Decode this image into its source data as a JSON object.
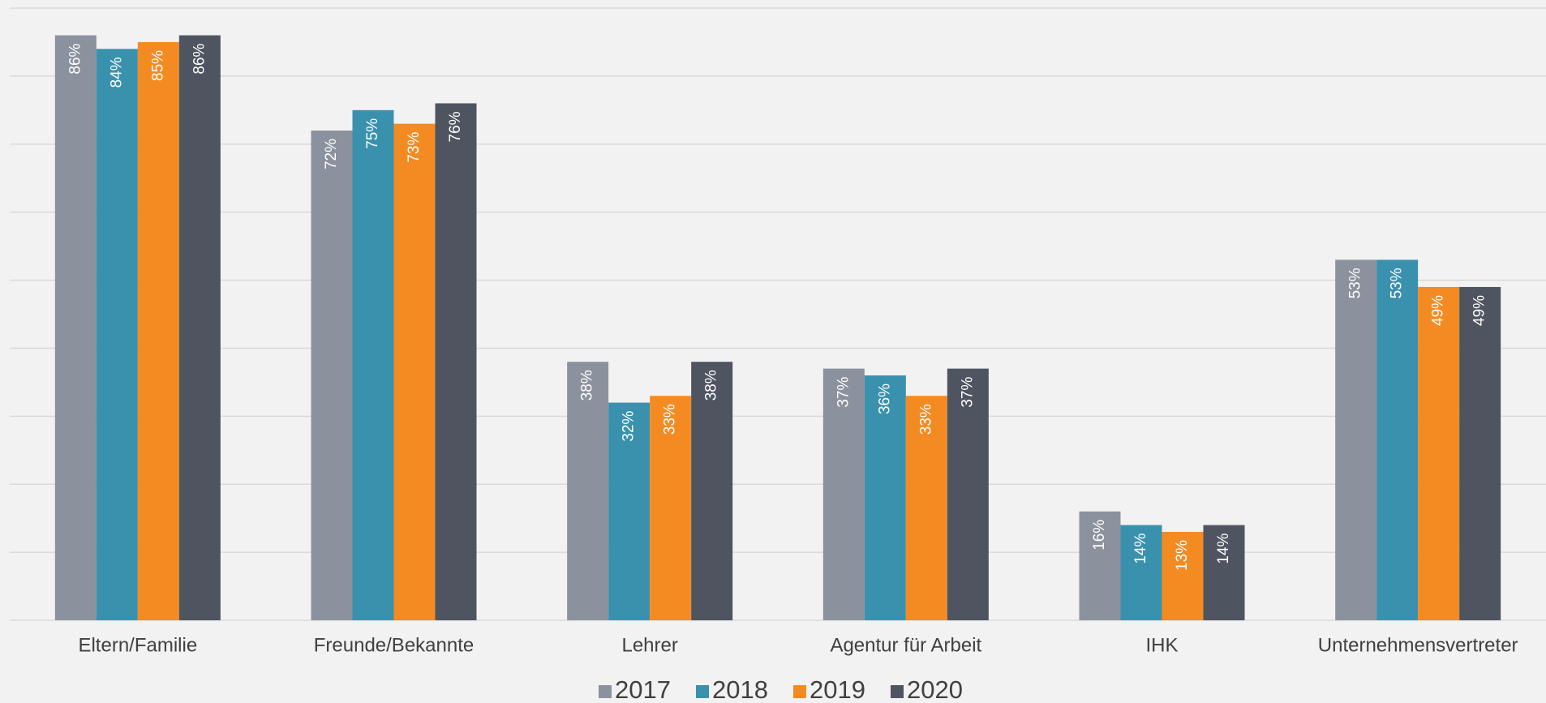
{
  "chart_data": {
    "type": "bar",
    "categories": [
      "Eltern/Familie",
      "Freunde/Bekannte",
      "Lehrer",
      "Agentur für Arbeit",
      "IHK",
      "Unternehmensvertreter"
    ],
    "series": [
      {
        "name": "2017",
        "color": "#8c919e",
        "values": [
          86,
          72,
          38,
          37,
          16,
          53
        ],
        "value_labels": [
          "86%",
          "72%",
          "38%",
          "37%",
          "16%",
          "53%"
        ]
      },
      {
        "name": "2018",
        "color": "#3a91ad",
        "values": [
          84,
          75,
          32,
          36,
          14,
          53
        ],
        "value_labels": [
          "84%",
          "75%",
          "32%",
          "36%",
          "14%",
          "53%"
        ]
      },
      {
        "name": "2019",
        "color": "#f48b22",
        "values": [
          85,
          73,
          33,
          33,
          13,
          49
        ],
        "value_labels": [
          "85%",
          "73%",
          "33%",
          "33%",
          "13%",
          "49%"
        ]
      },
      {
        "name": "2020",
        "color": "#4f5461",
        "values": [
          86,
          76,
          38,
          37,
          14,
          49
        ],
        "value_labels": [
          "86%",
          "76%",
          "38%",
          "37%",
          "14%",
          "49%"
        ]
      }
    ],
    "ylim": [
      0,
      90
    ],
    "yticks": [
      0,
      10,
      20,
      30,
      40,
      50,
      60,
      70,
      80,
      90
    ],
    "grid": true,
    "legend": "bottom"
  }
}
